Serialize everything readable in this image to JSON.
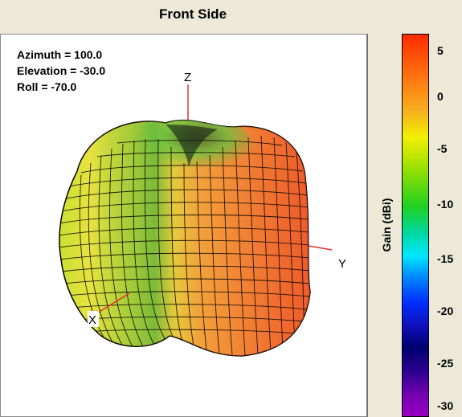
{
  "title": "Front Side",
  "orientation": {
    "azimuth": "Azimuth = 100.0",
    "elevation": "Elevation = -30.0",
    "roll": "Roll = -70.0"
  },
  "axes": {
    "x": "X",
    "y": "Y",
    "z": "Z"
  },
  "colorbar": {
    "label": "Gain (dBi)",
    "ticks": [
      "5",
      "0",
      "-5",
      "-10",
      "-15",
      "-20",
      "-25",
      "-30"
    ],
    "colors": [
      "#ff2a00",
      "#f2f000",
      "#20d020",
      "#00e8ff",
      "#0030ff",
      "#000070",
      "#9a00c0"
    ]
  }
}
